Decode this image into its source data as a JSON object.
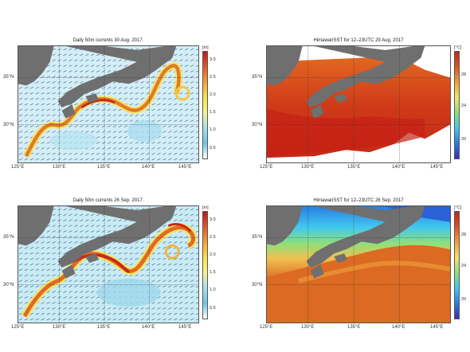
{
  "panels": [
    {
      "id": "currents-aug",
      "title": "Daily 50m currents 30 Aug. 2017.",
      "unit": "[m]",
      "colorbar": [
        "3.0",
        "2.5",
        "2.0",
        "1.5",
        "1.0",
        "0.5"
      ],
      "lon_labels": [
        "125°E",
        "130°E",
        "135°E",
        "140°E",
        "145°E"
      ],
      "lat_labels": [
        "35°N",
        "30°N"
      ]
    },
    {
      "id": "sst-aug",
      "title": "HimawariSST for 12–23UTC 29 Aug. 2017",
      "unit": "[°C]",
      "colorbar": [
        "28",
        "24",
        "20"
      ],
      "lon_labels": [
        "125°E",
        "130°E",
        "135°E",
        "140°E",
        "145°E"
      ],
      "lat_labels": [
        "35°N",
        "30°N"
      ]
    },
    {
      "id": "currents-sep",
      "title": "Daily 50m currents 26 Sep. 2017.",
      "unit": "[m]",
      "colorbar": [
        "3.0",
        "2.5",
        "2.0",
        "1.5",
        "1.0",
        "0.5"
      ],
      "lon_labels": [
        "125°E",
        "130°E",
        "135°E",
        "140°E",
        "145°E"
      ],
      "lat_labels": [
        "35°N",
        "30°N"
      ]
    },
    {
      "id": "sst-sep",
      "title": "HimawariSST for 12–23UTC 26 Sep. 2017",
      "unit": "[°C]",
      "colorbar": [
        "28",
        "24",
        "20"
      ],
      "lon_labels": [
        "125°E",
        "130°E",
        "135°E",
        "140°E",
        "145°E"
      ],
      "lat_labels": [
        "35°N",
        "30°N"
      ]
    }
  ],
  "colors": {
    "land": "#6f6f6f",
    "currents_scale": [
      "#ffffff",
      "#9fdcef",
      "#6fc4e6",
      "#fff57a",
      "#f7c844",
      "#e8722a",
      "#d0241c"
    ],
    "sst_scale": [
      "#3b2db5",
      "#2a7de1",
      "#41c8f0",
      "#8fe07a",
      "#f5e46a",
      "#f0a23c",
      "#d8571e",
      "#c0281a"
    ]
  }
}
